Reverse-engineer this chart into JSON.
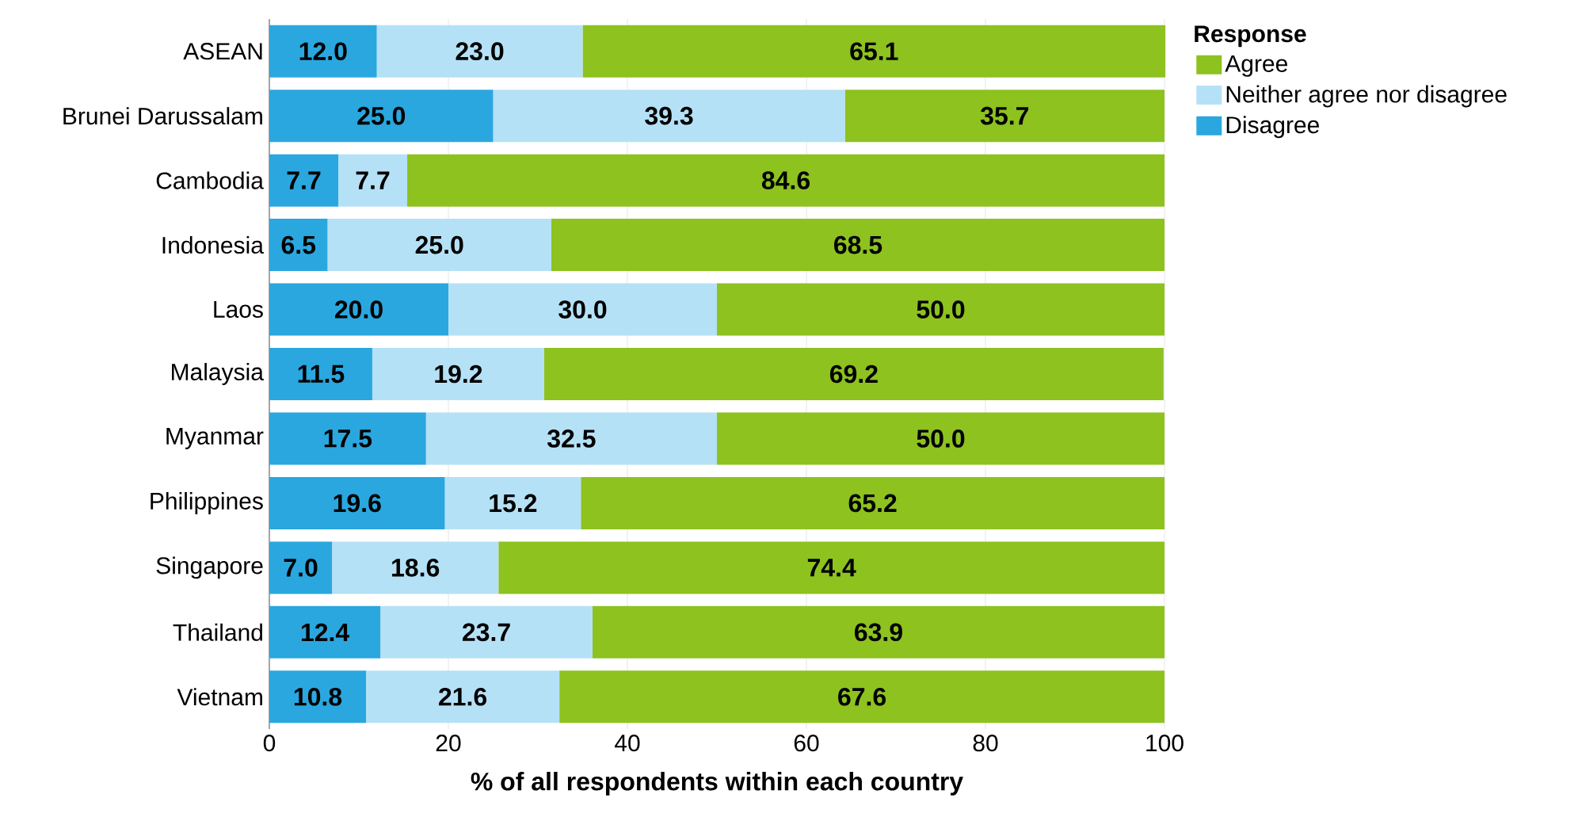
{
  "chart_data": {
    "type": "bar",
    "orientation": "horizontal",
    "stacked": true,
    "categories": [
      "ASEAN",
      "Brunei Darussalam",
      "Cambodia",
      "Indonesia",
      "Laos",
      "Malaysia",
      "Myanmar",
      "Philippines",
      "Singapore",
      "Thailand",
      "Vietnam"
    ],
    "series": [
      {
        "name": "Disagree",
        "color": "#2aa7df",
        "values": [
          12.0,
          25.0,
          7.7,
          6.5,
          20.0,
          11.5,
          17.5,
          19.6,
          7.0,
          12.4,
          10.8
        ],
        "value_labels": [
          "12.0",
          "25.0",
          "7.7",
          "6.5",
          "20.0",
          "11.5",
          "17.5",
          "19.6",
          "7.0",
          "12.4",
          "10.8"
        ]
      },
      {
        "name": "Neither agree nor disagree",
        "color": "#b5e1f6",
        "values": [
          23.0,
          39.3,
          7.7,
          25.0,
          30.0,
          19.2,
          32.5,
          15.2,
          18.6,
          23.7,
          21.6
        ],
        "value_labels": [
          "23.0",
          "39.3",
          "7.7",
          "25.0",
          "30.0",
          "19.2",
          "32.5",
          "15.2",
          "18.6",
          "23.7",
          "21.6"
        ]
      },
      {
        "name": "Agree",
        "color": "#8dc21f",
        "values": [
          65.1,
          35.7,
          84.6,
          68.5,
          50.0,
          69.2,
          50.0,
          65.2,
          74.4,
          63.9,
          67.6
        ],
        "value_labels": [
          "65.1",
          "35.7",
          "84.6",
          "68.5",
          "50.0",
          "69.2",
          "50.0",
          "65.2",
          "74.4",
          "63.9",
          "67.6"
        ]
      }
    ],
    "xlabel": "% of all respondents within each country",
    "legend_title": "Response",
    "xlim": [
      0,
      100
    ],
    "xticks": [
      0,
      20,
      40,
      60,
      80,
      100
    ],
    "grid": "x",
    "legend": "top right"
  }
}
